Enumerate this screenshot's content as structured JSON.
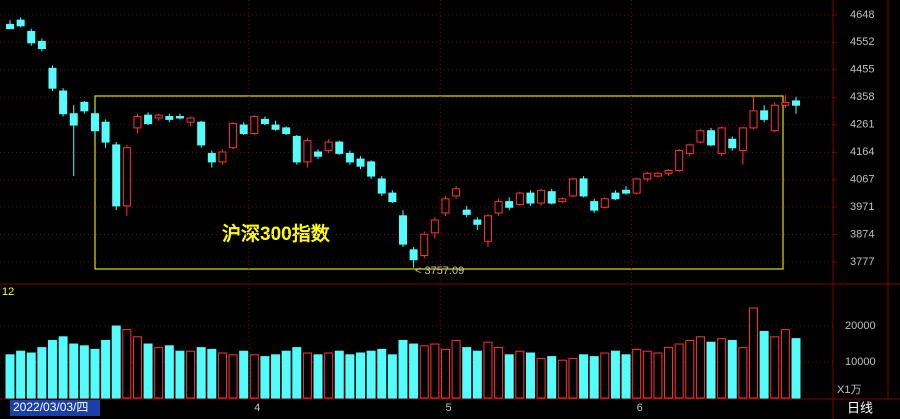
{
  "chart_data": {
    "type": "candlestick",
    "annotation": "沪深300指数",
    "low_label": "< 3757.09",
    "cursor_label": "2022/03/03/四",
    "period_label": "日线",
    "volume_panel_label": "12",
    "volume_unit_label": "X1万",
    "up_color": "#ff3232",
    "down_color": "#54fcfc",
    "categories": [
      null,
      null,
      null,
      null,
      null,
      null,
      null,
      null,
      null,
      null,
      null,
      null,
      null,
      null,
      null,
      null,
      null,
      null,
      null,
      null,
      null,
      null,
      null,
      "4",
      null,
      null,
      null,
      null,
      null,
      null,
      null,
      null,
      null,
      null,
      null,
      null,
      null,
      null,
      null,
      null,
      null,
      "5",
      null,
      null,
      null,
      null,
      null,
      null,
      null,
      null,
      null,
      null,
      null,
      null,
      null,
      null,
      null,
      null,
      null,
      "6",
      null,
      null,
      null,
      null,
      null,
      null,
      null,
      null,
      null,
      null,
      null,
      null,
      null,
      null,
      null
    ],
    "open": [
      4615,
      4630,
      4590,
      4555,
      4460,
      4380,
      4300,
      4340,
      4300,
      4270,
      4190,
      3975,
      4250,
      4295,
      4285,
      4290,
      4290,
      4270,
      4270,
      4160,
      4130,
      4180,
      4260,
      4230,
      4280,
      4260,
      4250,
      4220,
      4130,
      4165,
      4170,
      4200,
      4160,
      4140,
      4130,
      4070,
      4020,
      3940,
      3820,
      3800,
      3880,
      3950,
      4010,
      3960,
      3925,
      3850,
      3950,
      3990,
      3980,
      4020,
      3985,
      4025,
      3990,
      4010,
      4070,
      3990,
      3970,
      4020,
      4030,
      4020,
      4070,
      4080,
      4090,
      4100,
      4160,
      4200,
      4240,
      4160,
      4210,
      4170,
      4250,
      4310,
      4240,
      4330,
      4345
    ],
    "high": [
      4630,
      4640,
      4600,
      4565,
      4470,
      4390,
      4330,
      4345,
      4320,
      4280,
      4200,
      4190,
      4300,
      4305,
      4300,
      4300,
      4300,
      4290,
      4275,
      4170,
      4175,
      4270,
      4270,
      4295,
      4290,
      4275,
      4255,
      4225,
      4215,
      4175,
      4210,
      4205,
      4170,
      4150,
      4135,
      4080,
      4030,
      3960,
      3830,
      3885,
      3935,
      4010,
      4045,
      3975,
      3935,
      3945,
      4000,
      4005,
      4025,
      4030,
      4035,
      4035,
      4005,
      4075,
      4080,
      4000,
      4005,
      4030,
      4045,
      4075,
      4095,
      4095,
      4105,
      4175,
      4195,
      4245,
      4250,
      4255,
      4220,
      4255,
      4360,
      4330,
      4340,
      4365,
      4360
    ],
    "low": [
      4600,
      4605,
      4540,
      4520,
      4380,
      4290,
      4080,
      4300,
      4220,
      4180,
      3960,
      3940,
      4230,
      4260,
      4275,
      4270,
      4280,
      4255,
      4180,
      4110,
      4120,
      4175,
      4225,
      4225,
      4260,
      4240,
      4225,
      4120,
      4110,
      4140,
      4160,
      4155,
      4120,
      4105,
      4070,
      4010,
      3985,
      3830,
      3757.09,
      3790,
      3860,
      3940,
      4000,
      3935,
      3890,
      3830,
      3940,
      3960,
      3975,
      3975,
      3975,
      3980,
      3985,
      4005,
      4005,
      3950,
      3965,
      3995,
      4015,
      4015,
      4060,
      4075,
      4080,
      4095,
      4150,
      4195,
      4185,
      4150,
      4170,
      4120,
      4245,
      4270,
      4235,
      4320,
      4300
    ],
    "close": [
      4600,
      4610,
      4550,
      4530,
      4390,
      4300,
      4260,
      4310,
      4240,
      4200,
      3975,
      4180,
      4290,
      4265,
      4295,
      4280,
      4285,
      4285,
      4190,
      4130,
      4165,
      4265,
      4230,
      4290,
      4265,
      4245,
      4230,
      4130,
      4205,
      4150,
      4200,
      4160,
      4130,
      4115,
      4080,
      4020,
      3990,
      3840,
      3785,
      3875,
      3925,
      4000,
      4035,
      3945,
      3910,
      3940,
      3990,
      3970,
      4020,
      3985,
      4030,
      3985,
      4000,
      4070,
      4010,
      3960,
      4000,
      4000,
      4020,
      4070,
      4090,
      4090,
      4100,
      4170,
      4190,
      4240,
      4190,
      4250,
      4180,
      4250,
      4310,
      4280,
      4330,
      4340,
      4330
    ],
    "volume": [
      12000,
      13000,
      12500,
      14000,
      16000,
      17000,
      15000,
      14500,
      13500,
      16000,
      20000,
      19000,
      17000,
      15000,
      14000,
      14500,
      13000,
      13000,
      14000,
      13500,
      12500,
      12000,
      13000,
      12000,
      11500,
      12000,
      13000,
      14000,
      12500,
      12000,
      12500,
      13000,
      12000,
      12500,
      13000,
      13500,
      12000,
      16000,
      15000,
      14500,
      15000,
      13500,
      16000,
      14000,
      13000,
      15500,
      14000,
      12000,
      13000,
      12500,
      11000,
      11500,
      10500,
      11000,
      12000,
      11500,
      12500,
      13000,
      12000,
      13500,
      13000,
      12500,
      14000,
      15000,
      16000,
      17000,
      15500,
      16500,
      16000,
      14000,
      25000,
      18500,
      17000,
      19000,
      16500
    ],
    "ylim": [
      3703,
      4701
    ],
    "yticks": [
      4648,
      4552,
      4455,
      4358,
      4261,
      4164,
      4067,
      3971,
      3874,
      3777
    ],
    "volume_ylim": [
      0,
      31400
    ],
    "volume_yticks": [
      10000,
      20000
    ],
    "grid": true
  }
}
